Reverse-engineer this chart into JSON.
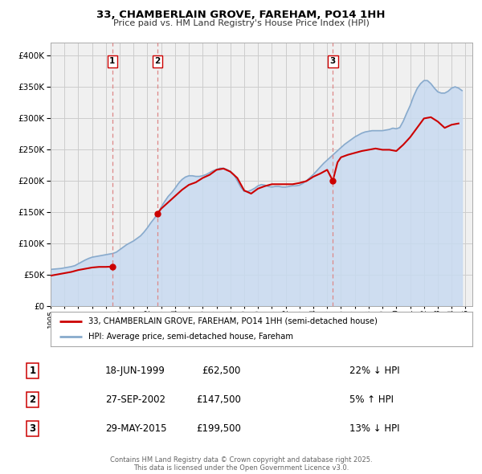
{
  "title": "33, CHAMBERLAIN GROVE, FAREHAM, PO14 1HH",
  "subtitle": "Price paid vs. HM Land Registry's House Price Index (HPI)",
  "hpi_label": "HPI: Average price, semi-detached house, Fareham",
  "price_label": "33, CHAMBERLAIN GROVE, FAREHAM, PO14 1HH (semi-detached house)",
  "footer": "Contains HM Land Registry data © Crown copyright and database right 2025.\nThis data is licensed under the Open Government Licence v3.0.",
  "transactions": [
    {
      "num": 1,
      "date": "18-JUN-1999",
      "price": 62500,
      "pct": "22%",
      "dir": "↓",
      "year": 1999.46
    },
    {
      "num": 2,
      "date": "27-SEP-2002",
      "price": 147500,
      "pct": "5%",
      "dir": "↑",
      "year": 2002.74
    },
    {
      "num": 3,
      "date": "29-MAY-2015",
      "price": 199500,
      "pct": "13%",
      "dir": "↓",
      "year": 2015.41
    }
  ],
  "price_color": "#cc0000",
  "hpi_color": "#88aacc",
  "hpi_fill_color": "#c8daf0",
  "vline_color": "#dd8888",
  "background_color": "#f0f0f0",
  "grid_color": "#cccccc",
  "ylim": [
    0,
    420000
  ],
  "xlim_start": 1995.0,
  "xlim_end": 2025.5,
  "hpi_data": {
    "years": [
      1995.0,
      1995.25,
      1995.5,
      1995.75,
      1996.0,
      1996.25,
      1996.5,
      1996.75,
      1997.0,
      1997.25,
      1997.5,
      1997.75,
      1998.0,
      1998.25,
      1998.5,
      1998.75,
      1999.0,
      1999.25,
      1999.5,
      1999.75,
      2000.0,
      2000.25,
      2000.5,
      2000.75,
      2001.0,
      2001.25,
      2001.5,
      2001.75,
      2002.0,
      2002.25,
      2002.5,
      2002.75,
      2003.0,
      2003.25,
      2003.5,
      2003.75,
      2004.0,
      2004.25,
      2004.5,
      2004.75,
      2005.0,
      2005.25,
      2005.5,
      2005.75,
      2006.0,
      2006.25,
      2006.5,
      2006.75,
      2007.0,
      2007.25,
      2007.5,
      2007.75,
      2008.0,
      2008.25,
      2008.5,
      2008.75,
      2009.0,
      2009.25,
      2009.5,
      2009.75,
      2010.0,
      2010.25,
      2010.5,
      2010.75,
      2011.0,
      2011.25,
      2011.5,
      2011.75,
      2012.0,
      2012.25,
      2012.5,
      2012.75,
      2013.0,
      2013.25,
      2013.5,
      2013.75,
      2014.0,
      2014.25,
      2014.5,
      2014.75,
      2015.0,
      2015.25,
      2015.5,
      2015.75,
      2016.0,
      2016.25,
      2016.5,
      2016.75,
      2017.0,
      2017.25,
      2017.5,
      2017.75,
      2018.0,
      2018.25,
      2018.5,
      2018.75,
      2019.0,
      2019.25,
      2019.5,
      2019.75,
      2020.0,
      2020.25,
      2020.5,
      2020.75,
      2021.0,
      2021.25,
      2021.5,
      2021.75,
      2022.0,
      2022.25,
      2022.5,
      2022.75,
      2023.0,
      2023.25,
      2023.5,
      2023.75,
      2024.0,
      2024.25,
      2024.5,
      2024.75
    ],
    "values": [
      58000,
      58500,
      59000,
      59500,
      60500,
      61500,
      62500,
      64000,
      67000,
      70000,
      73000,
      75500,
      77500,
      78500,
      79500,
      80500,
      81500,
      82500,
      83500,
      85500,
      89500,
      93500,
      97500,
      100500,
      103500,
      107500,
      111500,
      117500,
      124500,
      132500,
      139500,
      147500,
      157500,
      166500,
      174500,
      180500,
      187500,
      195500,
      201500,
      205500,
      207500,
      207500,
      206500,
      206500,
      207500,
      209500,
      212500,
      215500,
      217500,
      219500,
      219500,
      217500,
      214500,
      209500,
      199500,
      189500,
      182500,
      182500,
      184500,
      187500,
      191500,
      193500,
      192500,
      190500,
      189500,
      190500,
      190500,
      189500,
      189500,
      190500,
      191500,
      191500,
      192500,
      195500,
      199500,
      204500,
      209500,
      215500,
      221500,
      227500,
      232500,
      237500,
      242500,
      247500,
      252500,
      257500,
      261500,
      265500,
      269500,
      272500,
      275500,
      277500,
      278500,
      279500,
      279500,
      279500,
      279500,
      280500,
      281500,
      283500,
      282500,
      284500,
      294500,
      307500,
      319500,
      334500,
      346500,
      354500,
      359500,
      359500,
      354500,
      347500,
      341500,
      339500,
      339500,
      342500,
      347500,
      349500,
      347500,
      343500
    ]
  },
  "price_segments": [
    {
      "years": [
        1995.0,
        1995.5,
        1996.0,
        1996.5,
        1997.0,
        1997.5,
        1998.0,
        1998.5,
        1999.0,
        1999.46
      ],
      "values": [
        48000,
        50000,
        52000,
        54000,
        57000,
        59000,
        61000,
        62000,
        62000,
        62500
      ]
    },
    {
      "years": [
        2002.74,
        2003.0,
        2003.5,
        2004.0,
        2004.5,
        2005.0,
        2005.5,
        2006.0,
        2006.5,
        2007.0,
        2007.5,
        2008.0,
        2008.5,
        2009.0,
        2009.5,
        2010.0,
        2010.5,
        2011.0,
        2011.5,
        2012.0,
        2012.5,
        2013.0,
        2013.5,
        2014.0,
        2014.5,
        2015.0,
        2015.41
      ],
      "values": [
        147500,
        155000,
        165000,
        175000,
        185000,
        193000,
        197000,
        204000,
        209000,
        217000,
        219000,
        214000,
        204000,
        184000,
        179000,
        187000,
        191000,
        194000,
        194000,
        194000,
        194000,
        196000,
        199000,
        206000,
        211000,
        217000,
        199500
      ]
    },
    {
      "years": [
        2015.41,
        2015.75,
        2016.0,
        2016.5,
        2017.0,
        2017.5,
        2018.0,
        2018.5,
        2019.0,
        2019.5,
        2020.0,
        2020.5,
        2021.0,
        2021.5,
        2022.0,
        2022.5,
        2023.0,
        2023.5,
        2024.0,
        2024.5
      ],
      "values": [
        199500,
        229000,
        237000,
        241000,
        244000,
        247000,
        249000,
        251000,
        249000,
        249000,
        247000,
        257000,
        269000,
        284000,
        299000,
        301000,
        294000,
        284000,
        289000,
        291000
      ]
    }
  ]
}
